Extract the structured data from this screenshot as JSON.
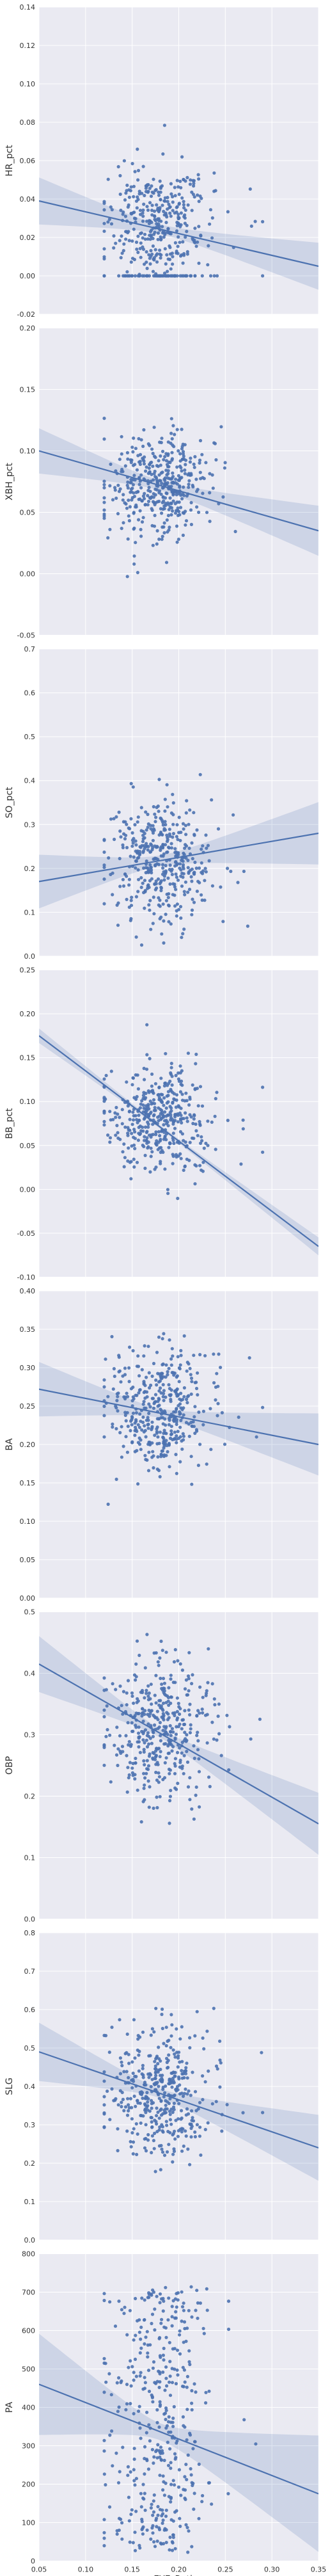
{
  "figure": {
    "xlabel": "EYE_Rating",
    "colors": {
      "background": "#EAEAF2",
      "grid": "#FFFFFF",
      "points": "#4C72B0",
      "line": "#4C72B0",
      "band": "#4C72B0"
    }
  },
  "chart_data": [
    {
      "type": "scatter",
      "name": "HR_pct",
      "xlabel": "",
      "ylabel": "HR_pct",
      "xlim": [
        0.05,
        0.35
      ],
      "ylim": [
        -0.02,
        0.14
      ],
      "xticks": [
        "0.05",
        "0.10",
        "0.15",
        "0.20",
        "0.25",
        "0.30",
        "0.35"
      ],
      "yticks": [
        "-0.02",
        "0.00",
        "0.02",
        "0.04",
        "0.06",
        "0.08",
        "0.10",
        "0.12",
        "0.14"
      ],
      "grid": true,
      "cloud": {
        "x_center": 0.18,
        "x_spread": 0.025,
        "y_center": 0.026,
        "y_spread": 0.016,
        "n": 420,
        "floor": 0.0,
        "floor_share": 0.12,
        "x_range": [
          0.12,
          0.29
        ]
      },
      "regression": {
        "x": [
          0.05,
          0.35
        ],
        "y": [
          0.039,
          0.005
        ],
        "ci_at_ends": [
          0.012,
          0.012
        ],
        "ci_at_center": 0.0025
      }
    },
    {
      "type": "scatter",
      "name": "XBH_pct",
      "xlabel": "",
      "ylabel": "XBH_pct",
      "xlim": [
        0.05,
        0.35
      ],
      "ylim": [
        -0.05,
        0.2
      ],
      "xticks": [
        "0.05",
        "0.10",
        "0.15",
        "0.20",
        "0.25",
        "0.30",
        "0.35"
      ],
      "yticks": [
        "-0.05",
        "0.00",
        "0.05",
        "0.10",
        "0.15",
        "0.20"
      ],
      "grid": true,
      "cloud": {
        "x_center": 0.18,
        "x_spread": 0.025,
        "y_center": 0.072,
        "y_spread": 0.022,
        "n": 420,
        "x_range": [
          0.12,
          0.29
        ]
      },
      "regression": {
        "x": [
          0.05,
          0.35
        ],
        "y": [
          0.1,
          0.035
        ],
        "ci_at_ends": [
          0.018,
          0.02
        ],
        "ci_at_center": 0.004
      }
    },
    {
      "type": "scatter",
      "name": "SO_pct",
      "xlabel": "",
      "ylabel": "SO_pct",
      "xlim": [
        0.05,
        0.35
      ],
      "ylim": [
        0.0,
        0.7
      ],
      "xticks": [
        "0.05",
        "0.10",
        "0.15",
        "0.20",
        "0.25",
        "0.30",
        "0.35"
      ],
      "yticks": [
        "0.0",
        "0.1",
        "0.2",
        "0.3",
        "0.4",
        "0.5",
        "0.6",
        "0.7"
      ],
      "grid": true,
      "cloud": {
        "x_center": 0.18,
        "x_spread": 0.025,
        "y_center": 0.21,
        "y_spread": 0.07,
        "n": 420,
        "x_range": [
          0.12,
          0.29
        ]
      },
      "regression": {
        "x": [
          0.05,
          0.35
        ],
        "y": [
          0.17,
          0.28
        ],
        "ci_at_ends": [
          0.06,
          0.07
        ],
        "ci_at_center": 0.012
      }
    },
    {
      "type": "scatter",
      "name": "BB_pct",
      "xlabel": "",
      "ylabel": "BB_pct",
      "xlim": [
        0.05,
        0.35
      ],
      "ylim": [
        -0.1,
        0.25
      ],
      "xticks": [
        "0.05",
        "0.10",
        "0.15",
        "0.20",
        "0.25",
        "0.30",
        "0.35"
      ],
      "yticks": [
        "-0.10",
        "-0.05",
        "0.00",
        "0.05",
        "0.10",
        "0.15",
        "0.20",
        "0.25"
      ],
      "grid": true,
      "cloud": {
        "x_center": 0.18,
        "x_spread": 0.025,
        "y_center": 0.08,
        "y_spread": 0.03,
        "n": 420,
        "x_range": [
          0.12,
          0.29
        ]
      },
      "regression": {
        "x": [
          0.05,
          0.35
        ],
        "y": [
          0.175,
          -0.065
        ],
        "ci_at_ends": [
          0.008,
          0.01
        ],
        "ci_at_center": 0.002
      }
    },
    {
      "type": "scatter",
      "name": "BA",
      "xlabel": "",
      "ylabel": "BA",
      "xlim": [
        0.05,
        0.35
      ],
      "ylim": [
        0.0,
        0.4
      ],
      "xticks": [
        "0.05",
        "0.10",
        "0.15",
        "0.20",
        "0.25",
        "0.30",
        "0.35"
      ],
      "yticks": [
        "0.00",
        "0.05",
        "0.10",
        "0.15",
        "0.20",
        "0.25",
        "0.30",
        "0.35",
        "0.40"
      ],
      "grid": true,
      "cloud": {
        "x_center": 0.18,
        "x_spread": 0.025,
        "y_center": 0.245,
        "y_spread": 0.04,
        "n": 420,
        "x_range": [
          0.12,
          0.29
        ]
      },
      "regression": {
        "x": [
          0.05,
          0.35
        ],
        "y": [
          0.272,
          0.2
        ],
        "ci_at_ends": [
          0.035,
          0.04
        ],
        "ci_at_center": 0.006
      }
    },
    {
      "type": "scatter",
      "name": "OBP",
      "xlabel": "",
      "ylabel": "OBP",
      "xlim": [
        0.05,
        0.35
      ],
      "ylim": [
        0.0,
        0.5
      ],
      "xticks": [
        "0.05",
        "0.10",
        "0.15",
        "0.20",
        "0.25",
        "0.30",
        "0.35"
      ],
      "yticks": [
        "0.0",
        "0.1",
        "0.2",
        "0.3",
        "0.4",
        "0.5"
      ],
      "grid": true,
      "cloud": {
        "x_center": 0.18,
        "x_spread": 0.025,
        "y_center": 0.31,
        "y_spread": 0.055,
        "n": 420,
        "x_range": [
          0.12,
          0.29
        ]
      },
      "regression": {
        "x": [
          0.05,
          0.35
        ],
        "y": [
          0.415,
          0.155
        ],
        "ci_at_ends": [
          0.045,
          0.05
        ],
        "ci_at_center": 0.007
      }
    },
    {
      "type": "scatter",
      "name": "SLG",
      "xlabel": "",
      "ylabel": "SLG",
      "xlim": [
        0.05,
        0.35
      ],
      "ylim": [
        0.0,
        0.8
      ],
      "xticks": [
        "0.05",
        "0.10",
        "0.15",
        "0.20",
        "0.25",
        "0.30",
        "0.35"
      ],
      "yticks": [
        "0.0",
        "0.1",
        "0.2",
        "0.3",
        "0.4",
        "0.5",
        "0.6",
        "0.7",
        "0.8"
      ],
      "grid": true,
      "cloud": {
        "x_center": 0.18,
        "x_spread": 0.025,
        "y_center": 0.38,
        "y_spread": 0.09,
        "n": 420,
        "x_range": [
          0.12,
          0.29
        ]
      },
      "regression": {
        "x": [
          0.05,
          0.35
        ],
        "y": [
          0.49,
          0.24
        ],
        "ci_at_ends": [
          0.075,
          0.085
        ],
        "ci_at_center": 0.012
      }
    },
    {
      "type": "scatter",
      "name": "PA",
      "xlabel": "EYE_Rating",
      "ylabel": "PA",
      "xlim": [
        0.05,
        0.35
      ],
      "ylim": [
        0,
        800
      ],
      "xticks": [
        "0.05",
        "0.10",
        "0.15",
        "0.20",
        "0.25",
        "0.30",
        "0.35"
      ],
      "yticks": [
        "0",
        "100",
        "200",
        "300",
        "400",
        "500",
        "600",
        "700",
        "800"
      ],
      "grid": true,
      "cloud": {
        "x_center": 0.18,
        "x_spread": 0.025,
        "y_center": 330,
        "y_spread": 190,
        "n": 420,
        "y_range": [
          20,
          720
        ],
        "uniform_y": true,
        "x_range": [
          0.12,
          0.29
        ]
      },
      "regression": {
        "x": [
          0.05,
          0.35
        ],
        "y": [
          460,
          175
        ],
        "ci_at_ends": [
          130,
          150
        ],
        "ci_at_center": 22
      }
    }
  ]
}
